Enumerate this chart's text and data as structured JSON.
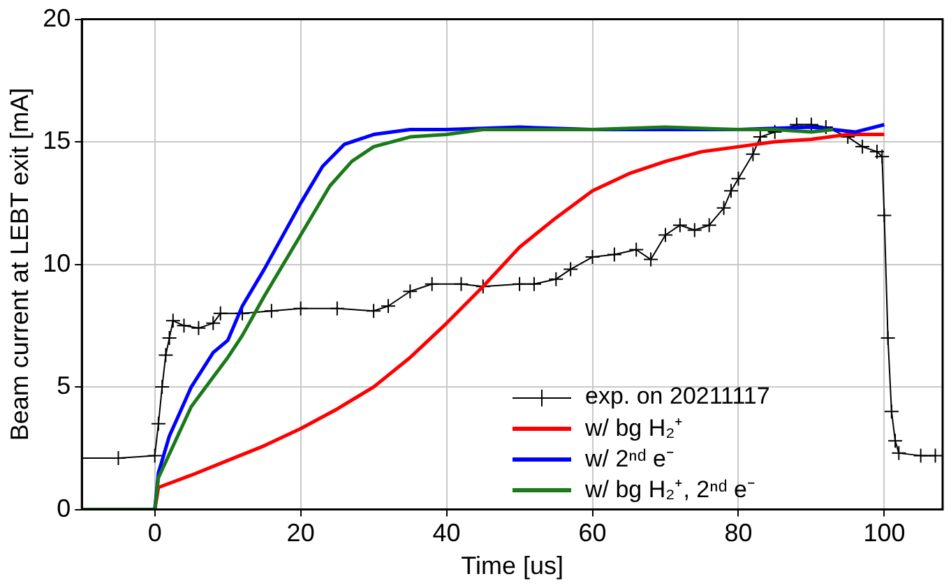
{
  "chart_data": {
    "type": "line",
    "xlabel": "Time [us]",
    "ylabel": "Beam current at LEBT exit [mA]",
    "xlim": [
      -10,
      108
    ],
    "xticks": [
      0,
      20,
      40,
      60,
      80,
      100
    ],
    "ylim": [
      0,
      20
    ],
    "yticks": [
      0,
      5,
      10,
      15,
      20
    ],
    "grid": true,
    "legend": "bottom right",
    "line_style": "solid",
    "series": [
      {
        "name": "exp. on 20211117",
        "color": "#000000",
        "marker": "cross",
        "x": [
          -10,
          -5,
          0,
          0.5,
          1,
          1.5,
          2,
          2.5,
          4,
          6,
          8,
          9,
          12,
          16,
          20,
          25,
          30,
          32,
          35,
          38,
          42,
          45,
          50,
          52,
          55,
          57,
          60,
          63,
          66,
          68,
          70,
          72,
          74,
          76,
          78,
          79,
          80,
          82,
          83,
          85,
          88,
          90,
          92,
          95,
          97,
          99,
          99.7,
          100,
          100.5,
          101,
          101.5,
          102,
          105,
          107
        ],
        "values": [
          2.1,
          2.1,
          2.2,
          3.5,
          5,
          6.3,
          7,
          7.7,
          7.5,
          7.4,
          7.6,
          8,
          8,
          8.1,
          8.2,
          8.2,
          8.1,
          8.3,
          8.9,
          9.2,
          9.2,
          9.1,
          9.2,
          9.2,
          9.4,
          9.8,
          10.3,
          10.4,
          10.6,
          10.2,
          11.2,
          11.6,
          11.4,
          11.6,
          12.3,
          13,
          13.5,
          14.5,
          15.2,
          15.4,
          15.7,
          15.7,
          15.6,
          15.2,
          14.8,
          14.6,
          14.4,
          12,
          7,
          4,
          2.8,
          2.3,
          2.2,
          2.2
        ]
      },
      {
        "name": "w/ bg H₂⁺",
        "color": "#ff0000",
        "x": [
          -10,
          0,
          0.5,
          5,
          10,
          15,
          20,
          25,
          30,
          35,
          40,
          45,
          50,
          55,
          60,
          65,
          70,
          75,
          80,
          85,
          90,
          95,
          100
        ],
        "values": [
          0,
          0,
          0.9,
          1.4,
          2,
          2.6,
          3.3,
          4.1,
          5,
          6.2,
          7.6,
          9.1,
          10.7,
          11.9,
          13,
          13.7,
          14.2,
          14.6,
          14.8,
          15,
          15.1,
          15.3,
          15.3
        ]
      },
      {
        "name": "w/ 2ⁿᵈ e⁻",
        "color": "#0000ff",
        "x": [
          -10,
          0,
          0.5,
          2,
          5,
          8,
          10,
          12,
          15,
          20,
          23,
          26,
          30,
          35,
          40,
          50,
          60,
          70,
          80,
          90,
          96,
          100
        ],
        "values": [
          0,
          0,
          1.5,
          3,
          5,
          6.4,
          6.9,
          8.3,
          9.8,
          12.5,
          14,
          14.9,
          15.3,
          15.5,
          15.5,
          15.6,
          15.5,
          15.5,
          15.5,
          15.6,
          15.4,
          15.7
        ]
      },
      {
        "name": "w/ bg H₂⁺, 2ⁿᵈ e⁻",
        "color": "#1a7a1a",
        "x": [
          -10,
          0,
          0.5,
          5,
          8,
          10,
          12,
          15,
          20,
          24,
          27,
          30,
          35,
          40,
          45,
          50,
          60,
          70,
          80,
          85,
          90,
          93
        ],
        "values": [
          0,
          0,
          1.3,
          4.2,
          5.4,
          6.2,
          7.1,
          8.7,
          11.2,
          13.2,
          14.2,
          14.8,
          15.2,
          15.3,
          15.5,
          15.5,
          15.5,
          15.6,
          15.5,
          15.5,
          15.4,
          15.5
        ]
      }
    ]
  }
}
